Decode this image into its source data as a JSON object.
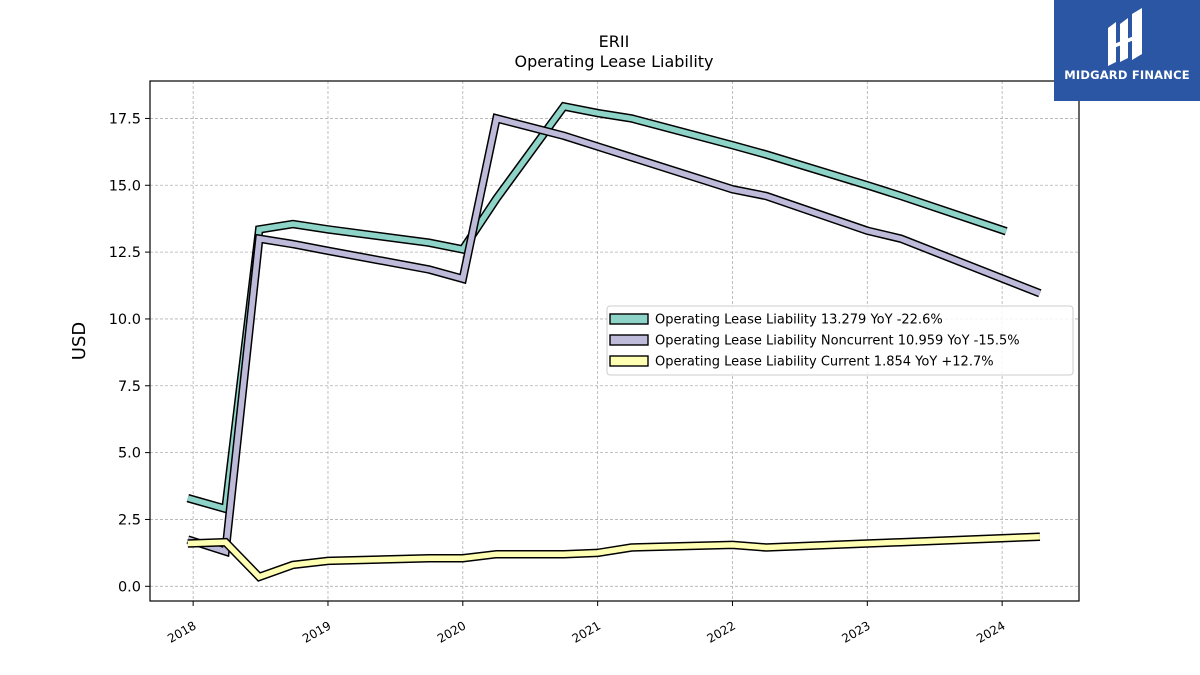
{
  "chart_data": {
    "type": "line",
    "title": "ERII",
    "subtitle": "Operating Lease Liability",
    "ylabel": "USD",
    "xlabel": "",
    "ylim": [
      -0.55,
      18.9
    ],
    "xlim": [
      2017.68,
      2024.57
    ],
    "yticks": [
      0.0,
      2.5,
      5.0,
      7.5,
      10.0,
      12.5,
      15.0,
      17.5
    ],
    "ytick_labels": [
      "0.0",
      "2.5",
      "5.0",
      "7.5",
      "10.0",
      "12.5",
      "15.0",
      "17.5"
    ],
    "xticks": [
      2018,
      2019,
      2020,
      2021,
      2022,
      2023,
      2024
    ],
    "xtick_labels": [
      "2018",
      "2019",
      "2020",
      "2021",
      "2022",
      "2023",
      "2024"
    ],
    "grid": true,
    "legend_position": "center-right",
    "series": [
      {
        "name": "Operating Lease Liability",
        "legend_label": "Operating Lease Liability  13.279 YoY -22.6%",
        "color": "#8dd3c7",
        "points": [
          [
            2017.96,
            3.3
          ],
          [
            2018.24,
            2.9
          ],
          [
            2018.49,
            13.35
          ],
          [
            2018.74,
            13.55
          ],
          [
            2019.0,
            13.35
          ],
          [
            2019.75,
            12.85
          ],
          [
            2020.0,
            12.6
          ],
          [
            2020.25,
            14.5
          ],
          [
            2020.75,
            17.95
          ],
          [
            2021.0,
            17.7
          ],
          [
            2021.25,
            17.5
          ],
          [
            2022.0,
            16.5
          ],
          [
            2022.25,
            16.15
          ],
          [
            2023.0,
            15.0
          ],
          [
            2023.25,
            14.6
          ],
          [
            2024.03,
            13.279
          ]
        ]
      },
      {
        "name": "Operating Lease Liability Noncurrent",
        "legend_label": "Operating Lease Liability Noncurrent  10.959 YoY -15.5%",
        "color": "#bebada",
        "points": [
          [
            2017.96,
            1.75
          ],
          [
            2018.24,
            1.3
          ],
          [
            2018.49,
            13.0
          ],
          [
            2018.74,
            12.8
          ],
          [
            2019.0,
            12.55
          ],
          [
            2019.75,
            11.85
          ],
          [
            2020.0,
            11.5
          ],
          [
            2020.25,
            17.5
          ],
          [
            2020.75,
            16.85
          ],
          [
            2021.0,
            16.45
          ],
          [
            2021.25,
            16.05
          ],
          [
            2022.0,
            14.85
          ],
          [
            2022.25,
            14.6
          ],
          [
            2023.0,
            13.3
          ],
          [
            2023.25,
            13.0
          ],
          [
            2024.28,
            10.959
          ]
        ]
      },
      {
        "name": "Operating Lease Liability Current",
        "legend_label": "Operating Lease Liability Current  1.854 YoY +12.7%",
        "color": "#ffffb3",
        "points": [
          [
            2017.96,
            1.6
          ],
          [
            2018.24,
            1.65
          ],
          [
            2018.49,
            0.35
          ],
          [
            2018.74,
            0.8
          ],
          [
            2019.0,
            0.95
          ],
          [
            2019.75,
            1.05
          ],
          [
            2020.0,
            1.05
          ],
          [
            2020.25,
            1.2
          ],
          [
            2020.75,
            1.2
          ],
          [
            2021.0,
            1.25
          ],
          [
            2021.25,
            1.45
          ],
          [
            2022.0,
            1.55
          ],
          [
            2022.25,
            1.45
          ],
          [
            2023.0,
            1.6
          ],
          [
            2023.25,
            1.65
          ],
          [
            2024.28,
            1.854
          ]
        ]
      }
    ]
  },
  "brand": {
    "name": "MIDGARD FINANCE",
    "logo_icon": "midgard-logo-icon",
    "background": "#2a56a4"
  }
}
